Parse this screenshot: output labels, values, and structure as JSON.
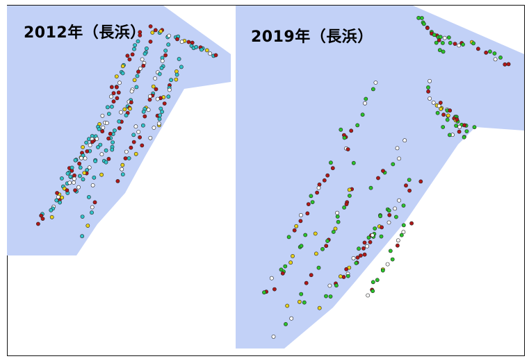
{
  "maps": [
    {
      "id": "left",
      "title": "2012年（長浜）",
      "colors": {
        "water": "#c2d1f7",
        "land": "#ffffff",
        "teal": "#31c3c9",
        "red": "#b01818",
        "yellow": "#e8d21a",
        "white": "#ffffff"
      }
    },
    {
      "id": "right",
      "title": "2019年（長浜）",
      "colors": {
        "water": "#c2d1f7",
        "land": "#ffffff",
        "green": "#2bc32b",
        "red": "#b01818",
        "yellow": "#e8d21a",
        "white": "#ffffff"
      }
    }
  ]
}
